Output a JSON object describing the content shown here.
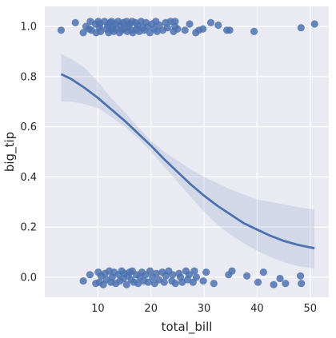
{
  "chart_data": {
    "type": "scatter",
    "title": "",
    "xlabel": "total_bill",
    "ylabel": "big_tip",
    "xlim": [
      0,
      53.5
    ],
    "ylim": [
      -0.08,
      1.08
    ],
    "xticks": [
      10,
      20,
      30,
      40,
      50
    ],
    "yticks": [
      0.0,
      0.2,
      0.4,
      0.6,
      0.8,
      1.0
    ],
    "xtick_labels": [
      "10",
      "20",
      "30",
      "40",
      "50"
    ],
    "ytick_labels": [
      "0.0",
      "0.2",
      "0.4",
      "0.6",
      "0.8",
      "1.0"
    ],
    "grid": true,
    "background_color": "#eaeaf2",
    "point_color": "#4c72b0",
    "band_color": "#4c72b0",
    "logistic_fit": {
      "x": [
        3.07,
        5,
        7.5,
        10,
        12.5,
        15,
        17.5,
        20,
        22.5,
        25,
        27.5,
        30,
        32.5,
        35,
        37.5,
        40,
        42.5,
        45,
        47.5,
        50.81
      ],
      "y": [
        0.81,
        0.79,
        0.755,
        0.715,
        0.67,
        0.625,
        0.575,
        0.525,
        0.47,
        0.42,
        0.37,
        0.325,
        0.285,
        0.25,
        0.215,
        0.19,
        0.165,
        0.145,
        0.13,
        0.115
      ],
      "ci_lower": [
        0.7,
        0.7,
        0.69,
        0.675,
        0.64,
        0.6,
        0.555,
        0.5,
        0.44,
        0.38,
        0.32,
        0.26,
        0.21,
        0.17,
        0.135,
        0.105,
        0.08,
        0.06,
        0.045,
        0.035
      ],
      "ci_upper": [
        0.89,
        0.87,
        0.835,
        0.78,
        0.715,
        0.66,
        0.6,
        0.545,
        0.5,
        0.465,
        0.43,
        0.4,
        0.375,
        0.35,
        0.33,
        0.31,
        0.3,
        0.29,
        0.28,
        0.27
      ]
    },
    "series": [
      {
        "values_x": [
          3.07,
          5.75,
          7.25,
          7.74,
          8.35,
          8.58,
          8.77,
          9.55,
          9.68,
          10.07,
          10.33,
          10.34,
          10.51,
          11.24,
          11.61,
          11.87,
          12.03,
          12.26,
          12.43,
          12.6,
          12.74,
          13.0,
          13.28,
          13.42,
          13.81,
          14.07,
          14.31,
          14.52,
          14.73,
          15.01,
          15.38,
          15.53,
          15.77,
          16.0,
          16.32,
          16.45,
          16.58,
          17.07,
          17.29,
          17.51,
          17.78,
          18.15,
          18.43,
          18.71,
          19.08,
          19.44,
          19.81,
          20.23,
          20.65,
          20.92,
          21.16,
          21.58,
          22.23,
          22.76,
          23.1,
          23.68,
          24.27,
          24.52,
          24.55,
          25.0,
          26.41,
          27.28,
          28.44,
          29.03,
          29.8,
          31.27,
          32.68,
          34.3,
          34.83,
          39.42,
          48.27,
          50.81
        ],
        "values_y": [
          0.985,
          1.015,
          0.975,
          1.0,
          0.99,
          1.02,
          0.985,
          1.01,
          0.975,
          1.02,
          0.995,
          1.01,
          0.98,
          1.02,
          0.99,
          1.005,
          0.975,
          1.015,
          0.985,
          1.02,
          1.0,
          0.98,
          1.01,
          0.99,
          1.02,
          0.975,
          1.005,
          0.985,
          1.015,
          0.99,
          1.02,
          0.98,
          1.0,
          1.01,
          0.985,
          1.02,
          0.975,
          1.015,
          0.99,
          1.005,
          0.98,
          1.02,
          0.995,
          0.985,
          1.015,
          1.0,
          0.975,
          1.01,
          0.99,
          1.02,
          0.98,
          1.005,
          0.985,
          1.015,
          0.995,
          1.02,
          0.98,
          1.0,
          1.02,
          0.99,
          0.985,
          1.01,
          0.975,
          0.985,
          0.99,
          1.015,
          1.005,
          0.985,
          0.985,
          0.98,
          0.995,
          1.01
        ]
      },
      {
        "values_x": [
          7.25,
          8.52,
          9.6,
          10.07,
          10.27,
          10.59,
          11.02,
          11.35,
          11.59,
          12.16,
          12.46,
          12.69,
          13.03,
          13.39,
          13.94,
          14.15,
          14.48,
          14.83,
          15.06,
          15.42,
          15.69,
          15.98,
          16.29,
          16.47,
          16.82,
          17.26,
          17.59,
          17.92,
          18.29,
          18.69,
          19.0,
          19.49,
          19.82,
          20.29,
          20.69,
          21.01,
          21.5,
          22.12,
          22.49,
          22.82,
          23.33,
          23.95,
          24.08,
          24.59,
          25.29,
          25.56,
          25.89,
          26.59,
          26.88,
          27.18,
          27.93,
          28.17,
          28.55,
          29.85,
          30.4,
          31.85,
          34.63,
          35.26,
          38.07,
          40.17,
          41.19,
          43.11,
          44.3,
          45.35,
          48.17,
          48.33
        ],
        "values_y": [
          -0.015,
          0.01,
          -0.025,
          0.02,
          -0.02,
          0.005,
          -0.03,
          0.015,
          -0.01,
          0.025,
          -0.02,
          0.0,
          0.02,
          -0.025,
          0.01,
          -0.015,
          0.025,
          -0.005,
          0.015,
          -0.03,
          0.005,
          0.02,
          -0.01,
          0.025,
          -0.02,
          0.01,
          -0.025,
          0.0,
          0.02,
          -0.015,
          0.01,
          -0.02,
          0.025,
          0.0,
          -0.025,
          0.015,
          -0.01,
          0.02,
          -0.02,
          0.005,
          0.025,
          -0.015,
          0.01,
          -0.025,
          0.015,
          0.0,
          -0.02,
          0.025,
          -0.01,
          0.01,
          -0.02,
          0.025,
          0.0,
          -0.015,
          0.02,
          -0.025,
          0.01,
          0.025,
          0.005,
          -0.02,
          0.02,
          -0.03,
          -0.005,
          -0.025,
          0.005,
          -0.025
        ]
      }
    ]
  }
}
